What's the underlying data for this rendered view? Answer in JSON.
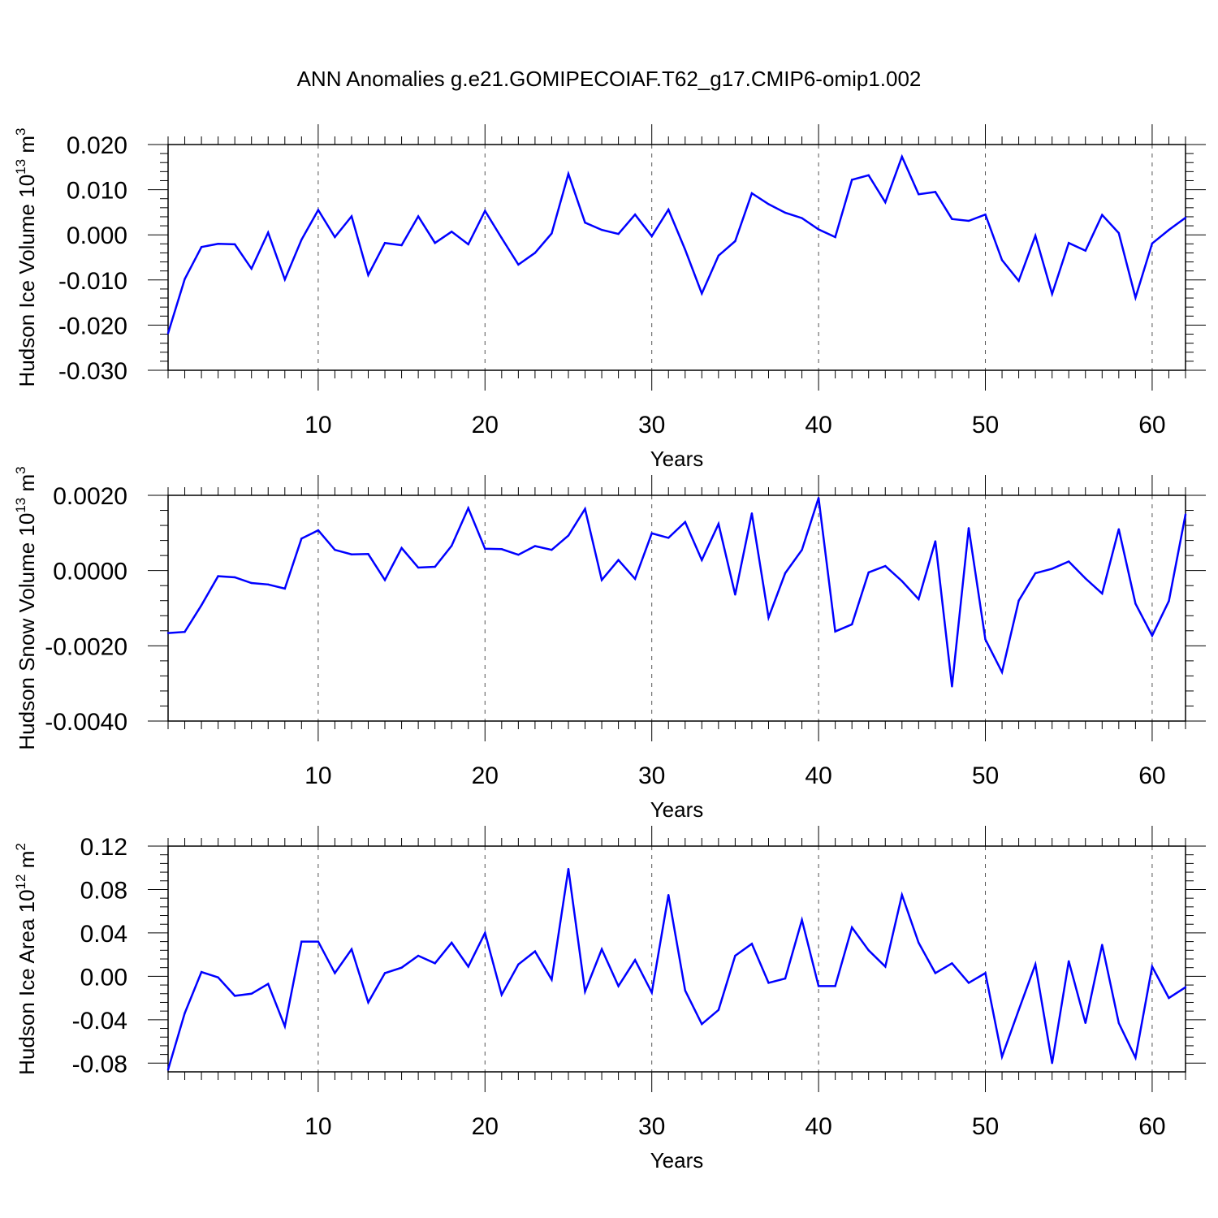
{
  "title": "ANN Anomalies g.e21.GOMIPECOIAF.T62_g17.CMIP6-omip1.002",
  "colors": {
    "line": "#0000ff",
    "axis": "#000000",
    "grid": "#555555"
  },
  "chart_data": [
    {
      "type": "line",
      "ylabel_main": "Hudson Ice Volume 10",
      "ylabel_exp": "13",
      "ylabel_unit": " m",
      "ylabel_unit_exp": "3",
      "xlabel": "Years",
      "xlim": [
        1,
        62
      ],
      "ylim": [
        -0.03,
        0.02
      ],
      "yticks": [
        -0.03,
        -0.02,
        -0.01,
        0.0,
        0.01,
        0.02
      ],
      "ytick_labels": [
        "-0.030",
        "-0.020",
        "-0.010",
        "0.000",
        "0.010",
        "0.020"
      ],
      "xticks": [
        10,
        20,
        30,
        40,
        50,
        60
      ],
      "xtick_labels": [
        "10",
        "20",
        "30",
        "40",
        "50",
        "60"
      ],
      "series": [
        {
          "name": "Hudson Ice Volume",
          "x": [
            1,
            2,
            3,
            4,
            5,
            6,
            7,
            8,
            9,
            10,
            11,
            12,
            13,
            14,
            15,
            16,
            17,
            18,
            19,
            20,
            21,
            22,
            23,
            24,
            25,
            26,
            27,
            28,
            29,
            30,
            31,
            32,
            33,
            34,
            35,
            36,
            37,
            38,
            39,
            40,
            41,
            42,
            43,
            44,
            45,
            46,
            47,
            48,
            49,
            50,
            51,
            52,
            53,
            54,
            55,
            56,
            57,
            58,
            59,
            60,
            61,
            62
          ],
          "values": [
            -0.0218,
            -0.0098,
            -0.0027,
            -0.002,
            -0.0021,
            -0.0075,
            0.0005,
            -0.0099,
            -0.0011,
            0.0055,
            -0.0005,
            0.0041,
            -0.0089,
            -0.0018,
            -0.0023,
            0.0041,
            -0.0018,
            0.0007,
            -0.0021,
            0.0053,
            -0.0007,
            -0.0066,
            -0.004,
            0.0003,
            0.0135,
            0.0027,
            0.0011,
            0.0002,
            0.0045,
            -0.0003,
            0.0056,
            -0.0033,
            -0.013,
            -0.0046,
            -0.0014,
            0.0092,
            0.0068,
            0.0049,
            0.0037,
            0.0012,
            -0.0005,
            0.0122,
            0.0132,
            0.0072,
            0.0173,
            0.009,
            0.0095,
            0.0035,
            0.0031,
            0.0045,
            -0.0056,
            -0.0102,
            -0.0002,
            -0.0131,
            -0.0018,
            -0.0035,
            0.0044,
            0.0004,
            -0.0139,
            -0.0019,
            0.0011,
            0.0038
          ]
        }
      ]
    },
    {
      "type": "line",
      "ylabel_main": "Hudson Snow Volume 10",
      "ylabel_exp": "13",
      "ylabel_unit": " m",
      "ylabel_unit_exp": "3",
      "xlabel": "Years",
      "xlim": [
        1,
        62
      ],
      "ylim": [
        -0.004,
        0.002
      ],
      "yticks": [
        -0.004,
        -0.002,
        0.0,
        0.002
      ],
      "ytick_labels": [
        "-0.0040",
        "-0.0020",
        "0.0000",
        "0.0020"
      ],
      "xticks": [
        10,
        20,
        30,
        40,
        50,
        60
      ],
      "xtick_labels": [
        "10",
        "20",
        "30",
        "40",
        "50",
        "60"
      ],
      "series": [
        {
          "name": "Hudson Snow Volume",
          "x": [
            1,
            2,
            3,
            4,
            5,
            6,
            7,
            8,
            9,
            10,
            11,
            12,
            13,
            14,
            15,
            16,
            17,
            18,
            19,
            20,
            21,
            22,
            23,
            24,
            25,
            26,
            27,
            28,
            29,
            30,
            31,
            32,
            33,
            34,
            35,
            36,
            37,
            38,
            39,
            40,
            41,
            42,
            43,
            44,
            45,
            46,
            47,
            48,
            49,
            50,
            51,
            52,
            53,
            54,
            55,
            56,
            57,
            58,
            59,
            60,
            61,
            62
          ],
          "values": [
            -0.00166,
            -0.00163,
            -0.00092,
            -0.00015,
            -0.00018,
            -0.00033,
            -0.00037,
            -0.00048,
            0.00085,
            0.00107,
            0.00055,
            0.00043,
            0.00044,
            -0.00025,
            0.0006,
            8e-05,
            0.0001,
            0.00066,
            0.00166,
            0.00058,
            0.00057,
            0.00042,
            0.00065,
            0.00055,
            0.00093,
            0.00164,
            -0.00025,
            0.00028,
            -0.00022,
            0.00099,
            0.00087,
            0.00129,
            0.00028,
            0.00124,
            -0.00064,
            0.00152,
            -0.00125,
            -7e-05,
            0.00055,
            0.00193,
            -0.00162,
            -0.00143,
            -5e-05,
            0.00012,
            -0.00028,
            -0.00076,
            0.00078,
            -0.00308,
            0.00113,
            -0.00183,
            -0.0027,
            -0.0008,
            -7e-05,
            5e-05,
            0.00024,
            -0.00021,
            -0.00061,
            0.0011,
            -0.00088,
            -0.00173,
            -0.00081,
            0.00149
          ]
        }
      ]
    },
    {
      "type": "line",
      "ylabel_main": "Hudson Ice Area 10",
      "ylabel_exp": "12",
      "ylabel_unit": " m",
      "ylabel_unit_exp": "2",
      "xlabel": "Years",
      "xlim": [
        1,
        62
      ],
      "ylim": [
        -0.088,
        0.12
      ],
      "yticks": [
        -0.08,
        -0.04,
        0.0,
        0.04,
        0.08,
        0.12
      ],
      "ytick_labels": [
        "-0.08",
        "-0.04",
        "0.00",
        "0.04",
        "0.08",
        "0.12"
      ],
      "xticks": [
        10,
        20,
        30,
        40,
        50,
        60
      ],
      "xtick_labels": [
        "10",
        "20",
        "30",
        "40",
        "50",
        "60"
      ],
      "series": [
        {
          "name": "Hudson Ice Area",
          "x": [
            1,
            2,
            3,
            4,
            5,
            6,
            7,
            8,
            9,
            10,
            11,
            12,
            13,
            14,
            15,
            16,
            17,
            18,
            19,
            20,
            21,
            22,
            23,
            24,
            25,
            26,
            27,
            28,
            29,
            30,
            31,
            32,
            33,
            34,
            35,
            36,
            37,
            38,
            39,
            40,
            41,
            42,
            43,
            44,
            45,
            46,
            47,
            48,
            49,
            50,
            51,
            52,
            53,
            54,
            55,
            56,
            57,
            58,
            59,
            60,
            61,
            62
          ],
          "values": [
            -0.086,
            -0.034,
            0.004,
            -0.001,
            -0.018,
            -0.016,
            -0.007,
            -0.046,
            0.032,
            0.032,
            0.003,
            0.025,
            -0.024,
            0.003,
            0.008,
            0.019,
            0.012,
            0.031,
            0.009,
            0.04,
            -0.017,
            0.011,
            0.023,
            -0.003,
            0.099,
            -0.014,
            0.025,
            -0.009,
            0.015,
            -0.015,
            0.075,
            -0.013,
            -0.044,
            -0.031,
            0.019,
            0.03,
            -0.006,
            -0.002,
            0.052,
            -0.009,
            -0.009,
            0.045,
            0.024,
            0.009,
            0.075,
            0.031,
            0.003,
            0.012,
            -0.006,
            0.003,
            -0.074,
            -0.031,
            0.011,
            -0.08,
            0.014,
            -0.043,
            0.029,
            -0.043,
            -0.075,
            0.009,
            -0.02,
            -0.01
          ]
        }
      ]
    }
  ]
}
